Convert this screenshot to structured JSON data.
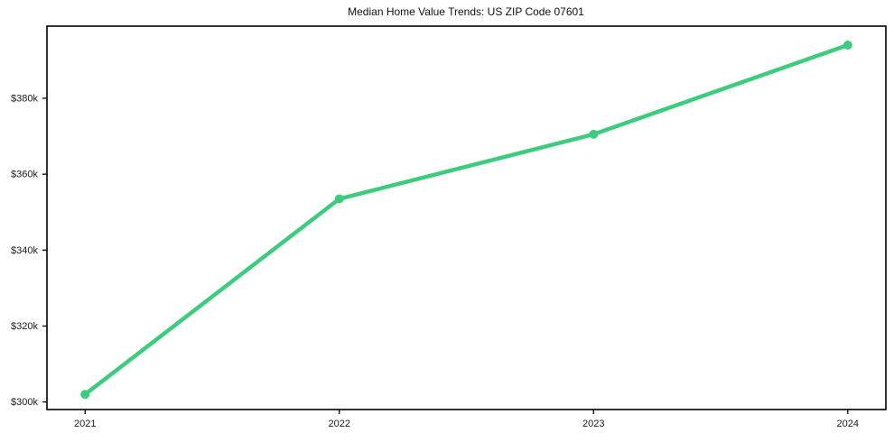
{
  "chart_data": {
    "type": "line",
    "title": "Median Home Value Trends: US ZIP Code 07601",
    "xlabel": "",
    "ylabel": "",
    "x": [
      2021,
      2022,
      2023,
      2024
    ],
    "series": [
      {
        "name": "Median Home Value",
        "values": [
          302000,
          353500,
          370500,
          394000
        ]
      }
    ],
    "xticks": {
      "values": [
        2021,
        2022,
        2023,
        2024
      ],
      "labels": [
        "2021",
        "2022",
        "2023",
        "2024"
      ]
    },
    "yticks": {
      "values": [
        300000,
        320000,
        340000,
        360000,
        380000
      ],
      "labels": [
        "$300k",
        "$320k",
        "$340k",
        "$360k",
        "$380k"
      ]
    },
    "xlim": [
      2020.85,
      2024.15
    ],
    "ylim": [
      298000,
      399000
    ],
    "grid": false,
    "legend": null,
    "line_color": "#3dcc7e",
    "marker": "circle",
    "marker_radius": 5,
    "line_width": 4.5,
    "axis_color": "#000000",
    "background_color": "#ffffff"
  }
}
